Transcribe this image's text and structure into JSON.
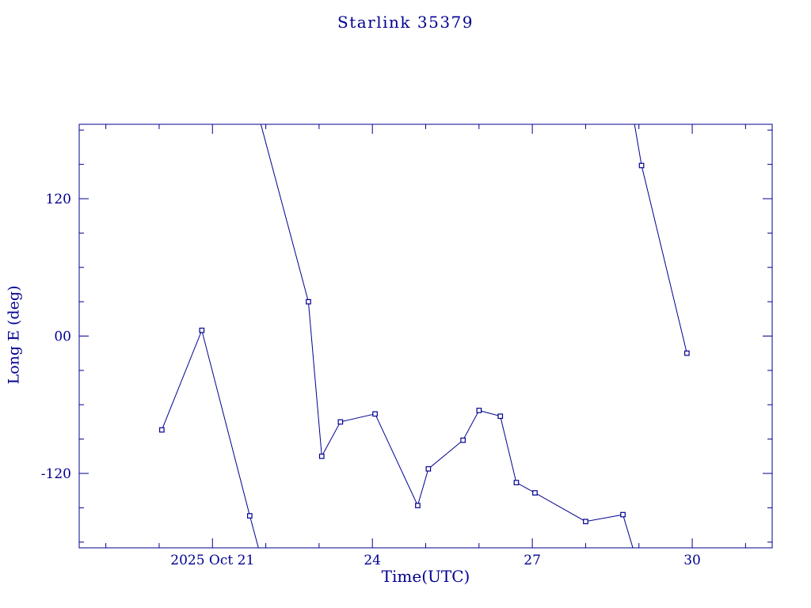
{
  "chart_data": {
    "type": "line",
    "title": "Starlink 35379",
    "xlabel": "Time(UTC)",
    "ylabel": "Long E (deg)",
    "xlim": [
      18.5,
      31.5
    ],
    "ylim": [
      -185,
      185
    ],
    "grid": false,
    "legend": false,
    "marker": "open-square",
    "colors": {
      "line": "#000090",
      "text": "#000090",
      "frame": "#000090",
      "background": "#ffffff"
    },
    "xticks_major": [
      {
        "value": 21,
        "label": "2025 Oct 21"
      },
      {
        "value": 24,
        "label": "24"
      },
      {
        "value": 27,
        "label": "27"
      },
      {
        "value": 30,
        "label": "30"
      }
    ],
    "xticks_minor": [
      19,
      20,
      22,
      23,
      25,
      26,
      28,
      29,
      31
    ],
    "yticks_major": [
      {
        "value": -120,
        "label": "-120"
      },
      {
        "value": 0,
        "label": "00"
      },
      {
        "value": 120,
        "label": "120"
      }
    ],
    "yticks_minor": [
      -180,
      -150,
      -90,
      -60,
      -30,
      30,
      60,
      90,
      150,
      180
    ],
    "points": [
      [
        20.05,
        -82
      ],
      [
        20.8,
        5
      ],
      [
        21.7,
        -157
      ],
      [
        22.8,
        30
      ],
      [
        23.05,
        -105
      ],
      [
        23.4,
        -75
      ],
      [
        24.05,
        -68
      ],
      [
        24.85,
        -148
      ],
      [
        25.05,
        -116
      ],
      [
        25.7,
        -91
      ],
      [
        26.0,
        -65
      ],
      [
        26.4,
        -70
      ],
      [
        26.7,
        -128
      ],
      [
        27.05,
        -137
      ],
      [
        28.0,
        -162
      ],
      [
        28.7,
        -156
      ],
      [
        29.05,
        149
      ],
      [
        29.9,
        -15
      ]
    ],
    "segments": [
      [
        [
          20.05,
          -82
        ],
        [
          20.8,
          5
        ],
        [
          21.7,
          -157
        ],
        [
          21.92,
          -195
        ]
      ],
      [
        [
          21.85,
          195
        ],
        [
          22.8,
          30
        ],
        [
          23.05,
          -105
        ],
        [
          23.4,
          -75
        ],
        [
          24.05,
          -68
        ],
        [
          24.85,
          -148
        ],
        [
          25.05,
          -116
        ],
        [
          25.7,
          -91
        ],
        [
          26.0,
          -65
        ],
        [
          26.4,
          -70
        ],
        [
          26.7,
          -128
        ],
        [
          27.05,
          -137
        ],
        [
          28.0,
          -162
        ],
        [
          28.7,
          -156
        ],
        [
          28.95,
          -195
        ]
      ],
      [
        [
          28.88,
          195
        ],
        [
          29.05,
          149
        ],
        [
          29.9,
          -15
        ]
      ]
    ]
  }
}
